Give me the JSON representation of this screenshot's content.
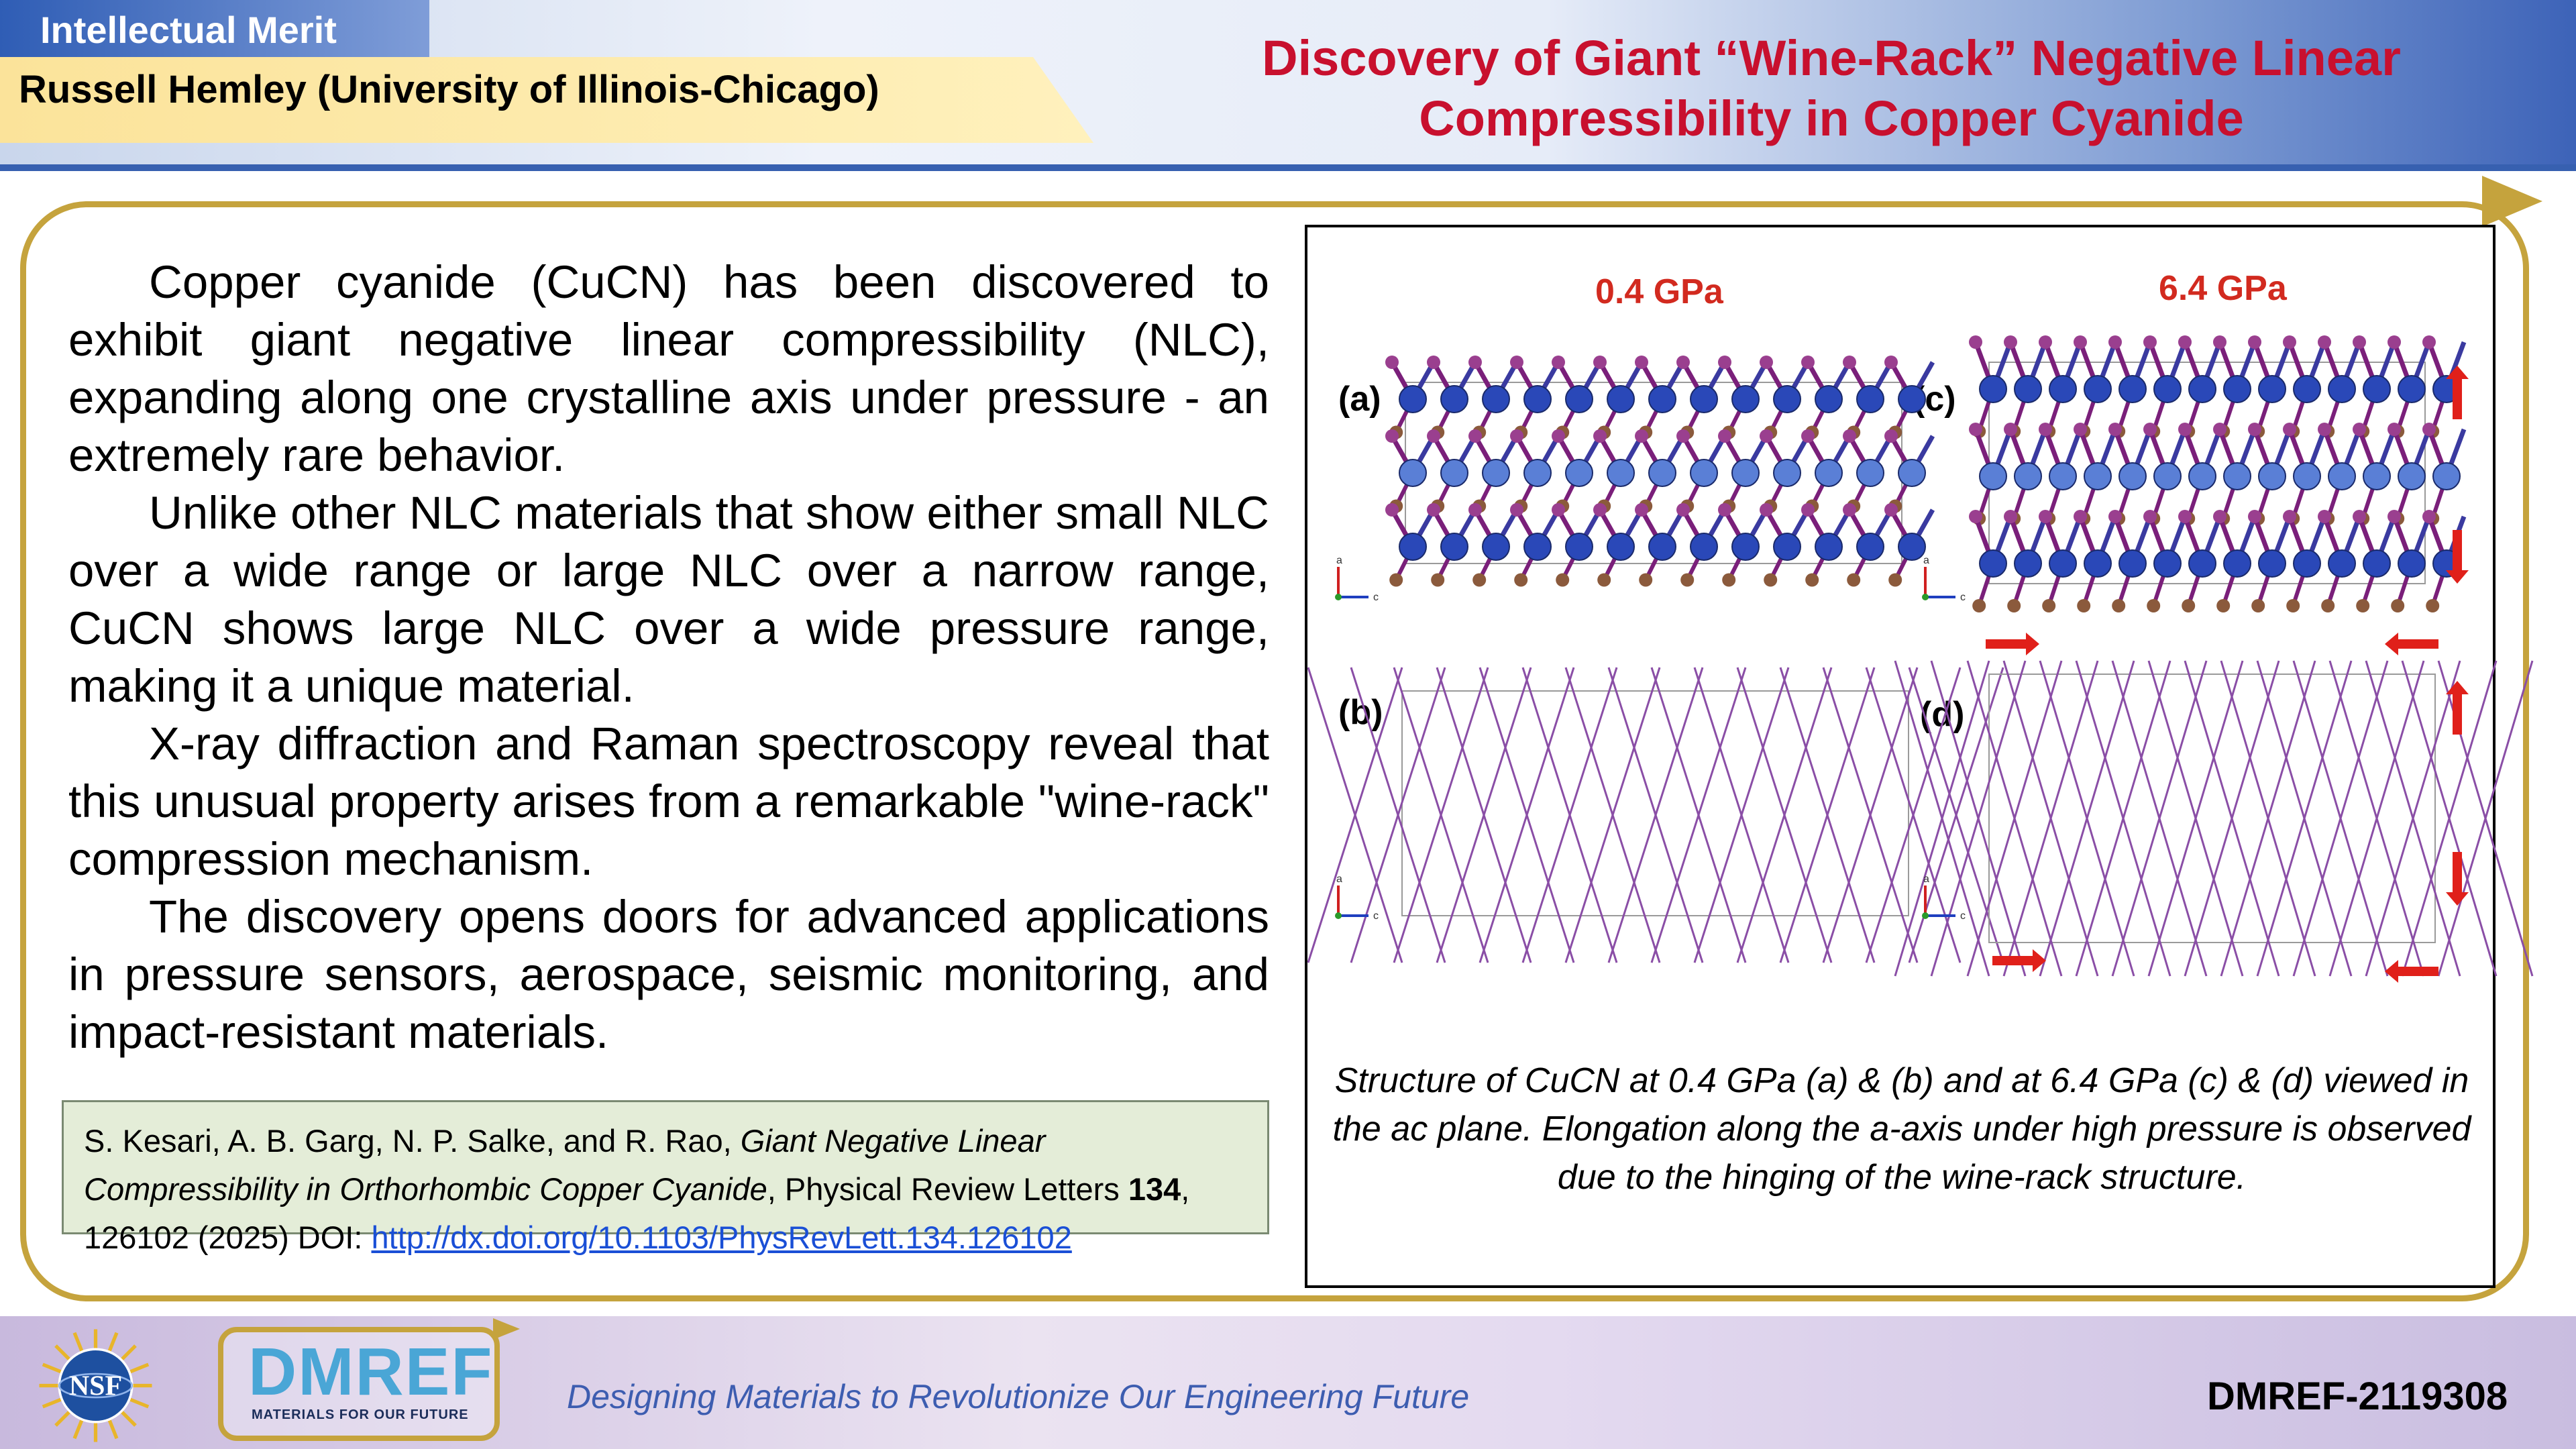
{
  "header": {
    "section": "Intellectual Merit",
    "pi": "Russell Hemley (University of Illinois-Chicago)",
    "title_line1": "Discovery of Giant “Wine-Rack” Negative Linear",
    "title_line2": "Compressibility in Copper Cyanide"
  },
  "body": {
    "paragraphs": [
      "Copper cyanide (CuCN) has been discovered to exhibit giant negative linear compressibility (NLC), expanding along one crystalline axis under pressure - an extremely rare behavior.",
      "Unlike other NLC materials that show either small NLC over a wide range or large NLC over a narrow range, CuCN shows large NLC over a wide pressure range, making it a unique material.",
      "X-ray diffraction and Raman spectroscopy reveal that this unusual property arises from a remarkable \"wine-rack\" compression mechanism.",
      "The discovery opens doors for advanced applications in pressure sensors, aerospace, seismic monitoring, and impact-resistant materials."
    ]
  },
  "citation": {
    "authors": "S. Kesari, A. B. Garg, N. P. Salke, and R. Rao, ",
    "title": "Giant Negative Linear Compressibility in Orthorhombic Copper Cyanide",
    "journal": ", Physical Review Letters ",
    "volume": "134",
    "pages": ", 126102 (2025) DOI: ",
    "doi": "http://dx.doi.org/10.1103/PhysRevLett.134.126102"
  },
  "figure": {
    "pressure_left": "0.4 GPa",
    "pressure_right": "6.4 GPa",
    "label_a": "(a)",
    "label_b": "(b)",
    "label_c": "(c)",
    "label_d": "(d)",
    "axis_a": "a",
    "axis_c": "c",
    "caption": "Structure of CuCN at 0.4 GPa (a) & (b) and at 6.4 GPa (c) & (d) viewed in the ac plane. Elongation along the a-axis under high pressure is observed due to the hinging of the wine-rack structure.",
    "colors": {
      "cu": "#2a48b8",
      "cu_light": "#5a7fd6",
      "bond": "#7a1f7a",
      "n_atom": "#9a3f8f",
      "arrow": "#e0201a"
    }
  },
  "footer": {
    "nsf_logo": "NSF",
    "dmref_logo": "DMREF",
    "dmref_subtitle": "MATERIALS FOR OUR FUTURE",
    "tagline": "Designing Materials to Revolutionize Our Engineering Future",
    "award": "DMREF-2119308"
  }
}
